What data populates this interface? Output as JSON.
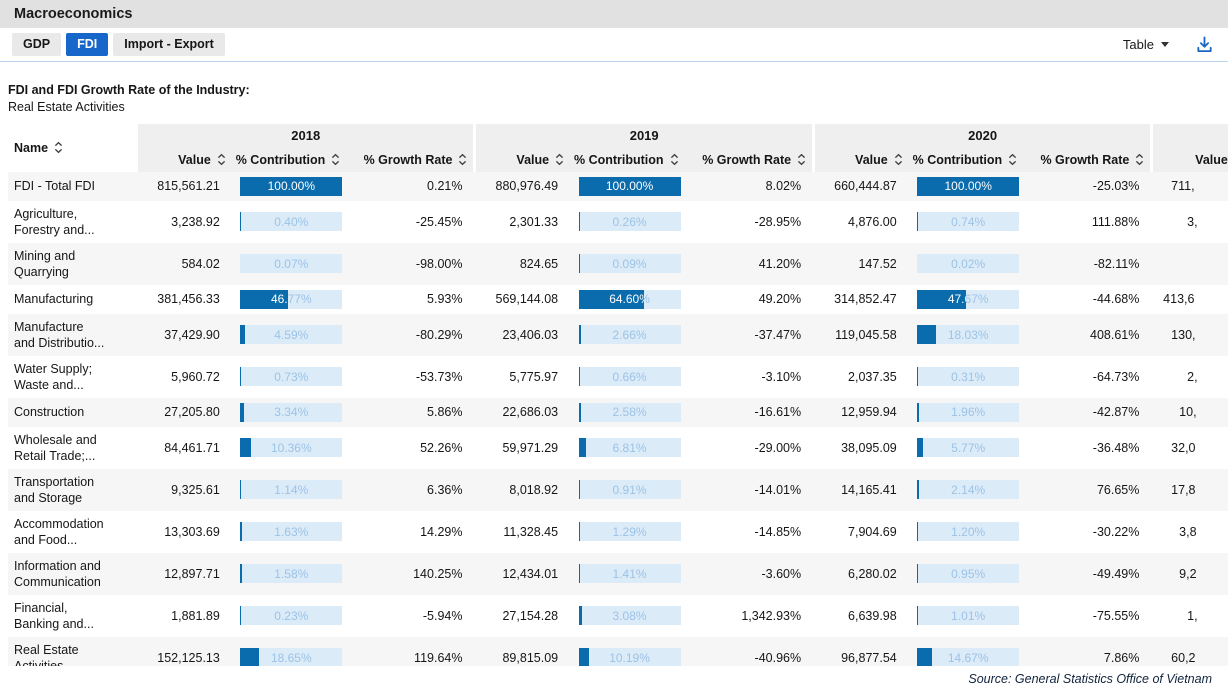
{
  "app_header": {
    "title": "Macroeconomics"
  },
  "tab_bar": {
    "tabs": [
      {
        "label": "GDP",
        "active": false
      },
      {
        "label": "FDI",
        "active": true
      },
      {
        "label": "Import - Export",
        "active": false
      }
    ]
  },
  "toolbar": {
    "view_selector": "Table",
    "download_icon": "download-icon"
  },
  "table": {
    "title": "FDI and FDI Growth Rate of the Industry:",
    "subtitle": "Real Estate Activities",
    "name_header": "Name",
    "years": [
      "2018",
      "2019",
      "2020"
    ],
    "sub_headers": [
      "Value",
      "% Contribution",
      "% Growth Rate"
    ],
    "clipped_next_column_header": "Value",
    "rows": [
      {
        "name_lines": [
          "FDI - Total FDI"
        ],
        "years": [
          {
            "value": "815,561.21",
            "contribution": "100.00%",
            "pct": 100,
            "growth": "0.21%"
          },
          {
            "value": "880,976.49",
            "contribution": "100.00%",
            "pct": 100,
            "growth": "8.02%"
          },
          {
            "value": "660,444.87",
            "contribution": "100.00%",
            "pct": 100,
            "growth": "-25.03%"
          }
        ],
        "partial_value": "711,"
      },
      {
        "name_lines": [
          "Agriculture,",
          "Forestry and..."
        ],
        "years": [
          {
            "value": "3,238.92",
            "contribution": "0.40%",
            "pct": 0.4,
            "growth": "-25.45%"
          },
          {
            "value": "2,301.33",
            "contribution": "0.26%",
            "pct": 0.26,
            "growth": "-28.95%"
          },
          {
            "value": "4,876.00",
            "contribution": "0.74%",
            "pct": 0.74,
            "growth": "111.88%"
          }
        ],
        "partial_value": "3,"
      },
      {
        "name_lines": [
          "Mining and",
          "Quarrying"
        ],
        "years": [
          {
            "value": "584.02",
            "contribution": "0.07%",
            "pct": 0.07,
            "growth": "-98.00%"
          },
          {
            "value": "824.65",
            "contribution": "0.09%",
            "pct": 0.09,
            "growth": "41.20%"
          },
          {
            "value": "147.52",
            "contribution": "0.02%",
            "pct": 0.02,
            "growth": "-82.11%"
          }
        ],
        "partial_value": ""
      },
      {
        "name_lines": [
          "Manufacturing"
        ],
        "years": [
          {
            "value": "381,456.33",
            "contribution": "46.77%",
            "pct": 46.77,
            "growth": "5.93%"
          },
          {
            "value": "569,144.08",
            "contribution": "64.60%",
            "pct": 64.6,
            "growth": "49.20%"
          },
          {
            "value": "314,852.47",
            "contribution": "47.67%",
            "pct": 47.67,
            "growth": "-44.68%"
          }
        ],
        "partial_value": "413,6"
      },
      {
        "name_lines": [
          "Manufacture",
          "and Distributio..."
        ],
        "years": [
          {
            "value": "37,429.90",
            "contribution": "4.59%",
            "pct": 4.59,
            "growth": "-80.29%"
          },
          {
            "value": "23,406.03",
            "contribution": "2.66%",
            "pct": 2.66,
            "growth": "-37.47%"
          },
          {
            "value": "119,045.58",
            "contribution": "18.03%",
            "pct": 18.03,
            "growth": "408.61%"
          }
        ],
        "partial_value": "130,"
      },
      {
        "name_lines": [
          "Water Supply;",
          "Waste and..."
        ],
        "years": [
          {
            "value": "5,960.72",
            "contribution": "0.73%",
            "pct": 0.73,
            "growth": "-53.73%"
          },
          {
            "value": "5,775.97",
            "contribution": "0.66%",
            "pct": 0.66,
            "growth": "-3.10%"
          },
          {
            "value": "2,037.35",
            "contribution": "0.31%",
            "pct": 0.31,
            "growth": "-64.73%"
          }
        ],
        "partial_value": "2,"
      },
      {
        "name_lines": [
          "Construction"
        ],
        "years": [
          {
            "value": "27,205.80",
            "contribution": "3.34%",
            "pct": 3.34,
            "growth": "5.86%"
          },
          {
            "value": "22,686.03",
            "contribution": "2.58%",
            "pct": 2.58,
            "growth": "-16.61%"
          },
          {
            "value": "12,959.94",
            "contribution": "1.96%",
            "pct": 1.96,
            "growth": "-42.87%"
          }
        ],
        "partial_value": "10,"
      },
      {
        "name_lines": [
          "Wholesale and",
          "Retail Trade;..."
        ],
        "years": [
          {
            "value": "84,461.71",
            "contribution": "10.36%",
            "pct": 10.36,
            "growth": "52.26%"
          },
          {
            "value": "59,971.29",
            "contribution": "6.81%",
            "pct": 6.81,
            "growth": "-29.00%"
          },
          {
            "value": "38,095.09",
            "contribution": "5.77%",
            "pct": 5.77,
            "growth": "-36.48%"
          }
        ],
        "partial_value": "32,0"
      },
      {
        "name_lines": [
          "Transportation",
          "and Storage"
        ],
        "years": [
          {
            "value": "9,325.61",
            "contribution": "1.14%",
            "pct": 1.14,
            "growth": "6.36%"
          },
          {
            "value": "8,018.92",
            "contribution": "0.91%",
            "pct": 0.91,
            "growth": "-14.01%"
          },
          {
            "value": "14,165.41",
            "contribution": "2.14%",
            "pct": 2.14,
            "growth": "76.65%"
          }
        ],
        "partial_value": "17,8"
      },
      {
        "name_lines": [
          "Accommodation",
          "and Food..."
        ],
        "years": [
          {
            "value": "13,303.69",
            "contribution": "1.63%",
            "pct": 1.63,
            "growth": "14.29%"
          },
          {
            "value": "11,328.45",
            "contribution": "1.29%",
            "pct": 1.29,
            "growth": "-14.85%"
          },
          {
            "value": "7,904.69",
            "contribution": "1.20%",
            "pct": 1.2,
            "growth": "-30.22%"
          }
        ],
        "partial_value": "3,8"
      },
      {
        "name_lines": [
          "Information and",
          "Communication"
        ],
        "years": [
          {
            "value": "12,897.71",
            "contribution": "1.58%",
            "pct": 1.58,
            "growth": "140.25%"
          },
          {
            "value": "12,434.01",
            "contribution": "1.41%",
            "pct": 1.41,
            "growth": "-3.60%"
          },
          {
            "value": "6,280.02",
            "contribution": "0.95%",
            "pct": 0.95,
            "growth": "-49.49%"
          }
        ],
        "partial_value": "9,2"
      },
      {
        "name_lines": [
          "Financial,",
          "Banking and..."
        ],
        "years": [
          {
            "value": "1,881.89",
            "contribution": "0.23%",
            "pct": 0.23,
            "growth": "-5.94%"
          },
          {
            "value": "27,154.28",
            "contribution": "3.08%",
            "pct": 3.08,
            "growth": "1,342.93%"
          },
          {
            "value": "6,639.98",
            "contribution": "1.01%",
            "pct": 1.01,
            "growth": "-75.55%"
          }
        ],
        "partial_value": "1,"
      },
      {
        "name_lines": [
          "Real Estate",
          "Activities"
        ],
        "years": [
          {
            "value": "152,125.13",
            "contribution": "18.65%",
            "pct": 18.65,
            "growth": "119.64%"
          },
          {
            "value": "89,815.09",
            "contribution": "10.19%",
            "pct": 10.19,
            "growth": "-40.96%"
          },
          {
            "value": "96,877.54",
            "contribution": "14.67%",
            "pct": 14.67,
            "growth": "7.86%"
          }
        ],
        "partial_value": "60,2"
      }
    ]
  },
  "source_note": "Source: General Statistics Office of Vietnam",
  "colors": {
    "active_tab": "#1667c9",
    "bar_fill": "#0a6bad",
    "bar_background": "#dcebf8",
    "bar_text_unfilled": "#9cc3e6",
    "download_icon_blue": "#1a66c2"
  }
}
